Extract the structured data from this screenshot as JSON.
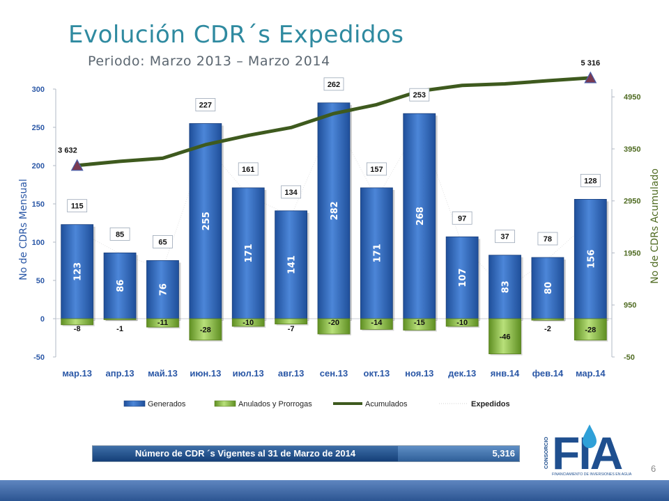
{
  "title": "Evolución CDR´s Expedidos",
  "subtitle": "Periodo: Marzo 2013 – Marzo 2014",
  "chart_data": {
    "type": "bar",
    "categories": [
      "мар.13",
      "апр.13",
      "май.13",
      "июн.13",
      "июл.13",
      "авг.13",
      "сен.13",
      "окт.13",
      "ноя.13",
      "дек.13",
      "янв.14",
      "фев.14",
      "мар.14"
    ],
    "series": [
      {
        "name": "Generados",
        "type": "bar",
        "axis": "left",
        "values": [
          123,
          86,
          76,
          255,
          171,
          141,
          282,
          171,
          268,
          107,
          83,
          80,
          156
        ],
        "color": "#3a6fc2"
      },
      {
        "name": "Anulados y Prorrogas",
        "type": "bar",
        "axis": "left",
        "values": [
          -8,
          -1,
          -11,
          -28,
          -10,
          -7,
          -20,
          -14,
          -15,
          -10,
          -46,
          -2,
          -28
        ],
        "color": "#8fbf4a"
      },
      {
        "name": "Acumulados",
        "type": "line",
        "axis": "right",
        "values": [
          3632,
          3710,
          3770,
          4030,
          4210,
          4360,
          4630,
          4800,
          5060,
          5170,
          5200,
          5260,
          5316
        ],
        "color": "#3e5a1e"
      },
      {
        "name": "Expedidos",
        "type": "line",
        "axis": "left",
        "values": [
          115,
          85,
          65,
          227,
          161,
          134,
          262,
          157,
          253,
          97,
          37,
          78,
          128
        ],
        "color": "#d0d0d0"
      }
    ],
    "ylabel": "No de CDRs Mensual",
    "y2label": "No de CDRs Acumulado",
    "ylim": [
      -50,
      300
    ],
    "yticks": [
      -50,
      0,
      50,
      100,
      150,
      200,
      250,
      300
    ],
    "y2lim": [
      -50,
      5100
    ],
    "y2ticks": [
      -50,
      950,
      1950,
      2950,
      3950,
      4950
    ],
    "annotations": [
      {
        "label": "3 632",
        "category_index": 0
      },
      {
        "label": "5 316",
        "category_index": 12
      }
    ],
    "legend_position": "bottom",
    "grid": false
  },
  "summary": {
    "label": "Número de CDR ´s Vigentes al 31 de Marzo de 2014",
    "value": "5,316"
  },
  "logo": {
    "letters": "FIA",
    "vertical_text": "CONSORCIO",
    "tagline": "FINANCIAMIENTO DE INVERSIONES EN AGUA"
  },
  "page_number": "6",
  "colors": {
    "title": "#2f8aa0",
    "left_axis": "#2a57a6",
    "right_axis": "#4f6b22",
    "accent": "#1f4f8f"
  }
}
